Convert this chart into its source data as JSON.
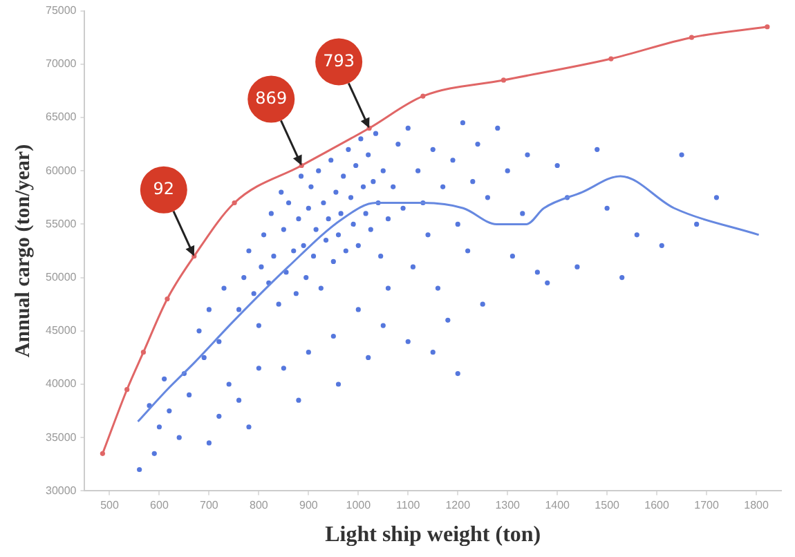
{
  "chart_data": {
    "type": "scatter",
    "xlabel": "Light ship weight (ton)",
    "ylabel": "Annual cargo (ton/year)",
    "xlim": [
      450,
      1850
    ],
    "xticks": [
      500,
      600,
      700,
      800,
      900,
      1000,
      1100,
      1200,
      1300,
      1400,
      1500,
      1600,
      1700,
      1800
    ],
    "ylim": [
      30000,
      75000
    ],
    "yticks": [
      30000,
      35000,
      40000,
      45000,
      50000,
      55000,
      60000,
      65000,
      70000,
      75000
    ],
    "grid": false,
    "legend": false,
    "series": [
      {
        "marker": "circle",
        "color": "#5577dd",
        "x": [
          560,
          590,
          600,
          620,
          640,
          660,
          580,
          700,
          720,
          650,
          610,
          690,
          740,
          760,
          780,
          800,
          680,
          700,
          720,
          730,
          760,
          770,
          780,
          790,
          800,
          805,
          810,
          820,
          825,
          830,
          840,
          845,
          850,
          855,
          860,
          870,
          875,
          880,
          885,
          890,
          895,
          900,
          905,
          910,
          915,
          920,
          925,
          930,
          935,
          940,
          945,
          950,
          955,
          960,
          965,
          970,
          975,
          980,
          985,
          990,
          995,
          1000,
          1005,
          1010,
          1015,
          1020,
          1025,
          1030,
          1035,
          1040,
          1045,
          1050,
          1060,
          1070,
          1080,
          1090,
          1100,
          1110,
          1120,
          1130,
          1140,
          1150,
          1160,
          1170,
          1180,
          1190,
          1200,
          1210,
          1220,
          1230,
          1240,
          1250,
          1260,
          1280,
          1300,
          1310,
          1330,
          1340,
          1360,
          1380,
          1400,
          1420,
          1440,
          1480,
          1500,
          1530,
          1560,
          1610,
          1650,
          1680,
          1720,
          1000,
          1050,
          1100,
          1060,
          950,
          900,
          850,
          880,
          960,
          1020,
          1150,
          1200
        ],
        "values": [
          32000,
          33500,
          36000,
          37500,
          35000,
          39000,
          38000,
          34500,
          37000,
          41000,
          40500,
          42500,
          40000,
          38500,
          36000,
          41500,
          45000,
          47000,
          44000,
          49000,
          47000,
          50000,
          52500,
          48500,
          45500,
          51000,
          54000,
          49500,
          56000,
          52000,
          47500,
          58000,
          54500,
          50500,
          57000,
          52500,
          48500,
          55500,
          59500,
          53000,
          50000,
          56500,
          58500,
          52000,
          54500,
          60000,
          49000,
          57000,
          53500,
          55500,
          61000,
          51500,
          58000,
          54000,
          56000,
          59500,
          52500,
          62000,
          57500,
          55000,
          60500,
          53000,
          63000,
          58500,
          56000,
          61500,
          54500,
          59000,
          63500,
          57000,
          52000,
          60000,
          55500,
          58500,
          62500,
          56500,
          64000,
          51000,
          60000,
          57000,
          54000,
          62000,
          49000,
          58500,
          46000,
          61000,
          55000,
          64500,
          52500,
          59000,
          62500,
          47500,
          57500,
          64000,
          60000,
          52000,
          56000,
          61500,
          50500,
          49500,
          60500,
          57500,
          51000,
          62000,
          56500,
          50000,
          54000,
          53000,
          61500,
          55000,
          57500,
          47000,
          45500,
          44000,
          49000,
          44500,
          43000,
          41500,
          38500,
          40000,
          42500,
          43000,
          41000
        ]
      },
      {
        "type": "line",
        "marker": "circle",
        "color": "#e06666",
        "x": [
          486,
          535,
          568,
          616,
          670,
          751,
          886,
          1022,
          1130,
          1292,
          1508,
          1670,
          1822
        ],
        "values": [
          33500,
          39500,
          43000,
          48000,
          52000,
          57000,
          60500,
          64000,
          67000,
          68500,
          70500,
          72500,
          73500
        ]
      },
      {
        "type": "line",
        "marker": "none",
        "color": "#6688e0",
        "x": [
          557,
          616,
          670,
          751,
          859,
          968,
          1035,
          1130,
          1211,
          1278,
          1338,
          1373,
          1450,
          1527,
          1635,
          1805
        ],
        "values": [
          36500,
          39500,
          42000,
          46000,
          51000,
          55500,
          57000,
          57000,
          56500,
          55000,
          55000,
          56500,
          58000,
          59500,
          56500,
          54000
        ]
      }
    ],
    "annotations": [
      {
        "text": "92",
        "x": 670,
        "y": 52000
      },
      {
        "text": "869",
        "x": 886,
        "y": 60500
      },
      {
        "text": "793",
        "x": 1022,
        "y": 64000
      }
    ]
  }
}
